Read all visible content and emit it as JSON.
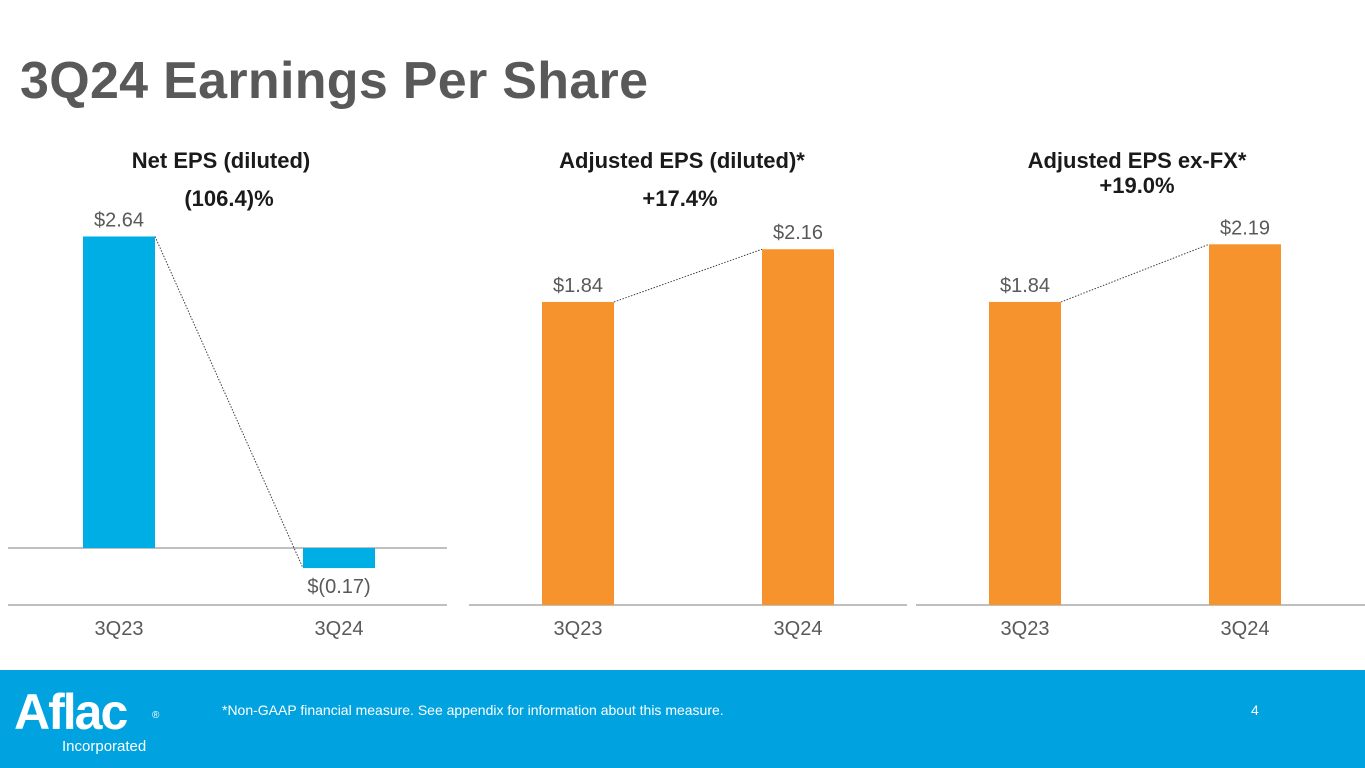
{
  "slide": {
    "title": "3Q24 Earnings Per Share",
    "footnote": "*Non-GAAP financial measure. See appendix for information about this measure.",
    "page_number": "4",
    "logo_text": "Aflac",
    "logo_reg": "®",
    "logo_subtext": "Incorporated"
  },
  "colors": {
    "title": "#595959",
    "net_bar": "#00aee6",
    "adjusted_bar": "#f7932d",
    "footer": "#00a3e0",
    "label": "#595959",
    "axis": "#7f7f7f"
  },
  "chart_data": [
    {
      "type": "bar",
      "title": "Net EPS (diluted)",
      "change": "(106.4)%",
      "categories": [
        "3Q23",
        "3Q24"
      ],
      "values": [
        2.64,
        -0.17
      ],
      "labels": [
        "$2.64",
        "$(0.17)"
      ],
      "ylim": [
        -0.5,
        2.8
      ],
      "color": "#00aee6"
    },
    {
      "type": "bar",
      "title": "Adjusted EPS (diluted)*",
      "change": "+17.4%",
      "categories": [
        "3Q23",
        "3Q24"
      ],
      "values": [
        1.84,
        2.16
      ],
      "labels": [
        "$1.84",
        "$2.16"
      ],
      "ylim": [
        0,
        2.6
      ],
      "color": "#f7932d"
    },
    {
      "type": "bar",
      "title": "Adjusted EPS ex-FX*",
      "change": "+19.0%",
      "categories": [
        "3Q23",
        "3Q24"
      ],
      "values": [
        1.84,
        2.19
      ],
      "labels": [
        "$1.84",
        "$2.19"
      ],
      "ylim": [
        0,
        2.6
      ],
      "color": "#f7932d"
    }
  ]
}
